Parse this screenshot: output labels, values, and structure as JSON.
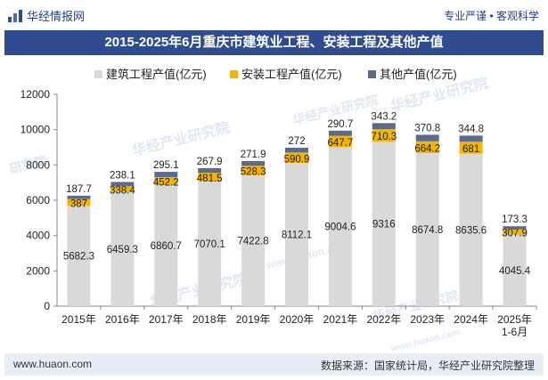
{
  "header": {
    "brand": "华经情报网",
    "tagline": "专业严谨 • 客观科学"
  },
  "watermarks": [
    "华经产业研究院",
    "华经产业研究院",
    "华经产业研究院",
    "研究院",
    "华经产业研究院",
    "华经产业研究院",
    "www.huaon.com",
    "www.huaon.com"
  ],
  "footer": {
    "url": "www.huaon.com",
    "source": "数据来源：国家统计局，华经产业研究院整理"
  },
  "chart_data": {
    "type": "bar",
    "stacked": true,
    "title": "2015-2025年6月重庆市建筑业工程、安装工程及其他产值",
    "categories": [
      "2015年",
      "2016年",
      "2017年",
      "2018年",
      "2019年",
      "2020年",
      "2021年",
      "2022年",
      "2023年",
      "2024年",
      "2025年 1-6月"
    ],
    "series": [
      {
        "name": "建筑工程产值(亿元)",
        "color": "#d9d9d9",
        "label_color": "#222222",
        "values": [
          5682.3,
          6459.3,
          6860.7,
          7070.1,
          7422.8,
          8112.1,
          9004.6,
          9316,
          8674.8,
          8635.6,
          4045.4
        ]
      },
      {
        "name": "安装工程产值(亿元)",
        "color": "#f5b400",
        "label_color": "#222222",
        "values": [
          387,
          338.4,
          452.2,
          481.5,
          528.3,
          590.9,
          647.7,
          710.3,
          664.2,
          681,
          307.9
        ]
      },
      {
        "name": "其他产值(亿元)",
        "color": "#5b6b8c",
        "label_color": "#222222",
        "values": [
          187.7,
          238.1,
          295.1,
          267.9,
          271.9,
          272,
          290.7,
          343.2,
          370.8,
          344.8,
          173.3
        ]
      }
    ],
    "ylim": [
      0,
      12000
    ],
    "yticks": [
      0,
      2000,
      4000,
      6000,
      8000,
      10000,
      12000
    ],
    "legend_position": "top-center",
    "grid": false
  }
}
